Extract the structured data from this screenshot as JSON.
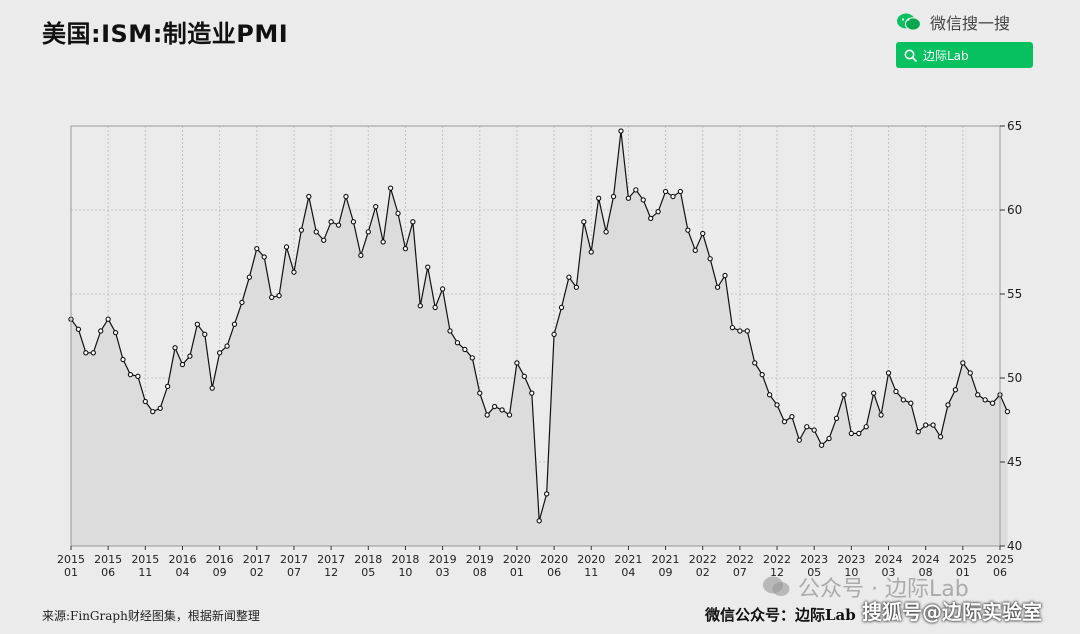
{
  "header": {
    "title": "美国:ISM:制造业PMI",
    "wechat_label": "微信搜一搜",
    "search_text": "边际Lab"
  },
  "footer": {
    "source": "来源:FinGraph财经图集，根据新闻整理",
    "wechat_account": "微信公众号：边际Lab",
    "watermark_overlay": "公众号 · 边际Lab",
    "watermark_sohu": "搜狐号@边际实验室"
  },
  "colors": {
    "background": "#ebebeb",
    "line": "#111111",
    "area_fill": "#dcdcdc",
    "wechat_green": "#07c160"
  },
  "chart_data": {
    "type": "area",
    "title": "美国:ISM:制造业PMI",
    "ylim": [
      40,
      65
    ],
    "y_ticks": [
      40,
      45,
      50,
      55,
      60,
      65
    ],
    "y_axis_side": "right",
    "grid": true,
    "x_start": "2015-01",
    "x_end": "2025-06",
    "x_ticks": [
      {
        "date": "2015-01",
        "year": "2015",
        "month": "01"
      },
      {
        "date": "2015-06",
        "year": "2015",
        "month": "06"
      },
      {
        "date": "2015-11",
        "year": "2015",
        "month": "11"
      },
      {
        "date": "2016-04",
        "year": "2016",
        "month": "04"
      },
      {
        "date": "2016-09",
        "year": "2016",
        "month": "09"
      },
      {
        "date": "2017-02",
        "year": "2017",
        "month": "02"
      },
      {
        "date": "2017-07",
        "year": "2017",
        "month": "07"
      },
      {
        "date": "2017-12",
        "year": "2017",
        "month": "12"
      },
      {
        "date": "2018-05",
        "year": "2018",
        "month": "05"
      },
      {
        "date": "2018-10",
        "year": "2018",
        "month": "10"
      },
      {
        "date": "2019-03",
        "year": "2019",
        "month": "03"
      },
      {
        "date": "2019-08",
        "year": "2019",
        "month": "08"
      },
      {
        "date": "2020-01",
        "year": "2020",
        "month": "01"
      },
      {
        "date": "2020-06",
        "year": "2020",
        "month": "06"
      },
      {
        "date": "2020-11",
        "year": "2020",
        "month": "11"
      },
      {
        "date": "2021-04",
        "year": "2021",
        "month": "04"
      },
      {
        "date": "2021-09",
        "year": "2021",
        "month": "09"
      },
      {
        "date": "2022-02",
        "year": "2022",
        "month": "02"
      },
      {
        "date": "2022-07",
        "year": "2022",
        "month": "07"
      },
      {
        "date": "2022-12",
        "year": "2022",
        "month": "12"
      },
      {
        "date": "2023-05",
        "year": "2023",
        "month": "05"
      },
      {
        "date": "2023-10",
        "year": "2023",
        "month": "10"
      },
      {
        "date": "2024-03",
        "year": "2024",
        "month": "03"
      },
      {
        "date": "2024-08",
        "year": "2024",
        "month": "08"
      },
      {
        "date": "2025-01",
        "year": "2025",
        "month": "01"
      },
      {
        "date": "2025-06",
        "year": "2025",
        "month": "06"
      }
    ],
    "series": [
      {
        "values": [
          53.5,
          52.9,
          51.5,
          51.5,
          52.8,
          53.5,
          52.7,
          51.1,
          50.2,
          50.1,
          48.6,
          48.0,
          48.2,
          49.5,
          51.8,
          50.8,
          51.3,
          53.2,
          52.6,
          49.4,
          51.5,
          51.9,
          53.2,
          54.5,
          56.0,
          57.7,
          57.2,
          54.8,
          54.9,
          57.8,
          56.3,
          58.8,
          60.8,
          58.7,
          58.2,
          59.3,
          59.1,
          60.8,
          59.3,
          57.3,
          58.7,
          60.2,
          58.1,
          61.3,
          59.8,
          57.7,
          59.3,
          54.3,
          56.6,
          54.2,
          55.3,
          52.8,
          52.1,
          51.7,
          51.2,
          49.1,
          47.8,
          48.3,
          48.1,
          47.8,
          50.9,
          50.1,
          49.1,
          41.5,
          43.1,
          52.6,
          54.2,
          56.0,
          55.4,
          59.3,
          57.5,
          60.7,
          58.7,
          60.8,
          64.7,
          60.7,
          61.2,
          60.6,
          59.5,
          59.9,
          61.1,
          60.8,
          61.1,
          58.8,
          57.6,
          58.6,
          57.1,
          55.4,
          56.1,
          53.0,
          52.8,
          52.8,
          50.9,
          50.2,
          49.0,
          48.4,
          47.4,
          47.7,
          46.3,
          47.1,
          46.9,
          46.0,
          46.4,
          47.6,
          49.0,
          46.7,
          46.7,
          47.1,
          49.1,
          47.8,
          50.3,
          49.2,
          48.7,
          48.5,
          46.8,
          47.2,
          47.2,
          46.5,
          48.4,
          49.3,
          50.9,
          50.3,
          49.0,
          48.7,
          48.5,
          49.0,
          48.0
        ]
      }
    ]
  }
}
